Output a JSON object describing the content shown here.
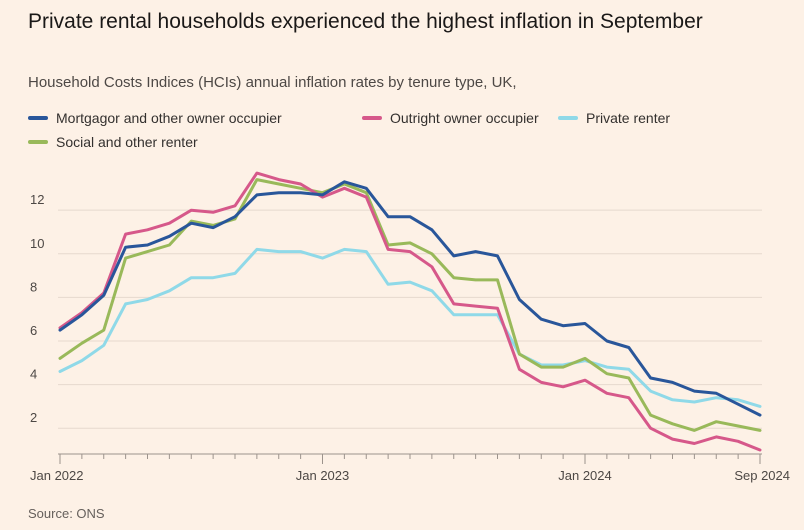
{
  "title": "Private rental households experienced the highest inflation in September",
  "subtitle": "Household Costs Indices (HCIs) annual inflation rates by tenure type, UK,",
  "source": "Source: ONS",
  "chart_data": {
    "type": "line",
    "title": "Private rental households experienced the highest inflation in September",
    "subtitle": "Household Costs Indices (HCIs) annual inflation rates by tenure type, UK,",
    "x": [
      "2022-01",
      "2022-02",
      "2022-03",
      "2022-04",
      "2022-05",
      "2022-06",
      "2022-07",
      "2022-08",
      "2022-09",
      "2022-10",
      "2022-11",
      "2022-12",
      "2023-01",
      "2023-02",
      "2023-03",
      "2023-04",
      "2023-05",
      "2023-06",
      "2023-07",
      "2023-08",
      "2023-09",
      "2023-10",
      "2023-11",
      "2023-12",
      "2024-01",
      "2024-02",
      "2024-03",
      "2024-04",
      "2024-05",
      "2024-06",
      "2024-07",
      "2024-08",
      "2024-09"
    ],
    "x_ticks": [
      {
        "value": "2022-01",
        "label": "Jan 2022"
      },
      {
        "value": "2023-01",
        "label": "Jan 2023"
      },
      {
        "value": "2024-01",
        "label": "Jan 2024"
      },
      {
        "value": "2024-09",
        "label": "Sep 2024"
      }
    ],
    "y_ticks": [
      2,
      4,
      6,
      8,
      10,
      12
    ],
    "ylim": [
      1,
      14.3
    ],
    "grid": true,
    "legend_position": "top",
    "series": [
      {
        "name": "Mortgagor and other owner occupier",
        "color": "#29569a",
        "values": [
          6.5,
          7.2,
          8.1,
          10.3,
          10.4,
          10.8,
          11.4,
          11.2,
          11.7,
          12.7,
          12.8,
          12.8,
          12.7,
          13.3,
          13.0,
          11.7,
          11.7,
          11.1,
          9.9,
          10.1,
          9.9,
          7.9,
          7.0,
          6.7,
          6.8,
          6.0,
          5.7,
          4.3,
          4.1,
          3.7,
          3.6,
          3.1,
          2.6
        ]
      },
      {
        "name": "Outright owner occupier",
        "color": "#d6588a",
        "values": [
          6.6,
          7.3,
          8.2,
          10.9,
          11.1,
          11.4,
          12.0,
          11.9,
          12.2,
          13.7,
          13.4,
          13.2,
          12.6,
          13.0,
          12.6,
          10.2,
          10.1,
          9.4,
          7.7,
          7.6,
          7.5,
          4.7,
          4.1,
          3.9,
          4.2,
          3.6,
          3.4,
          2.0,
          1.5,
          1.3,
          1.6,
          1.4,
          1.0
        ]
      },
      {
        "name": "Private renter",
        "color": "#8fd9e8",
        "values": [
          4.6,
          5.1,
          5.8,
          7.7,
          7.9,
          8.3,
          8.9,
          8.9,
          9.1,
          10.2,
          10.1,
          10.1,
          9.8,
          10.2,
          10.1,
          8.6,
          8.7,
          8.3,
          7.2,
          7.2,
          7.2,
          5.4,
          4.9,
          4.9,
          5.1,
          4.8,
          4.7,
          3.7,
          3.3,
          3.2,
          3.4,
          3.3,
          3.0
        ]
      },
      {
        "name": "Social and other renter",
        "color": "#99b95a",
        "values": [
          5.2,
          5.9,
          6.5,
          9.8,
          10.1,
          10.4,
          11.5,
          11.3,
          11.6,
          13.4,
          13.2,
          13.0,
          12.8,
          13.2,
          12.8,
          10.4,
          10.5,
          10.0,
          8.9,
          8.8,
          8.8,
          5.4,
          4.8,
          4.8,
          5.2,
          4.5,
          4.3,
          2.6,
          2.2,
          1.9,
          2.3,
          2.1,
          1.9
        ]
      }
    ]
  }
}
